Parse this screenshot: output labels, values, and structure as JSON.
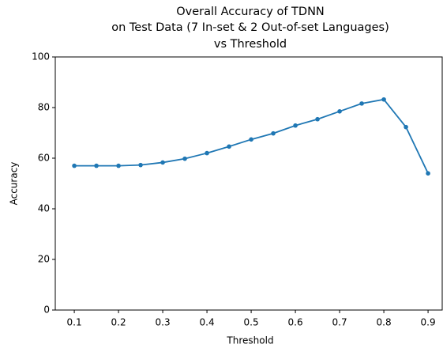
{
  "chart_data": {
    "type": "line",
    "title": [
      "Overall Accuracy of TDNN",
      "on Test Data (7 In-set & 2 Out-of-set Languages)",
      "vs Threshold"
    ],
    "xlabel": "Threshold",
    "ylabel": "Accuracy",
    "x": [
      0.1,
      0.15,
      0.2,
      0.25,
      0.3,
      0.35,
      0.4,
      0.45,
      0.5,
      0.55,
      0.6,
      0.65,
      0.7,
      0.75,
      0.8,
      0.85,
      0.9
    ],
    "series": [
      {
        "name": "Accuracy",
        "color": "#1f77b4",
        "values": [
          57.0,
          57.0,
          57.0,
          57.3,
          58.3,
          59.8,
          62.0,
          64.6,
          67.4,
          69.8,
          72.9,
          75.4,
          78.5,
          81.6,
          83.2,
          72.3,
          54.0
        ]
      }
    ],
    "xlim": [
      0.057,
      0.932
    ],
    "ylim": [
      0,
      100
    ],
    "xticks": [
      0.1,
      0.2,
      0.3,
      0.4,
      0.5,
      0.6,
      0.7,
      0.8,
      0.9
    ],
    "yticks": [
      0,
      20,
      40,
      60,
      80,
      100
    ],
    "grid": false,
    "legend": false
  }
}
